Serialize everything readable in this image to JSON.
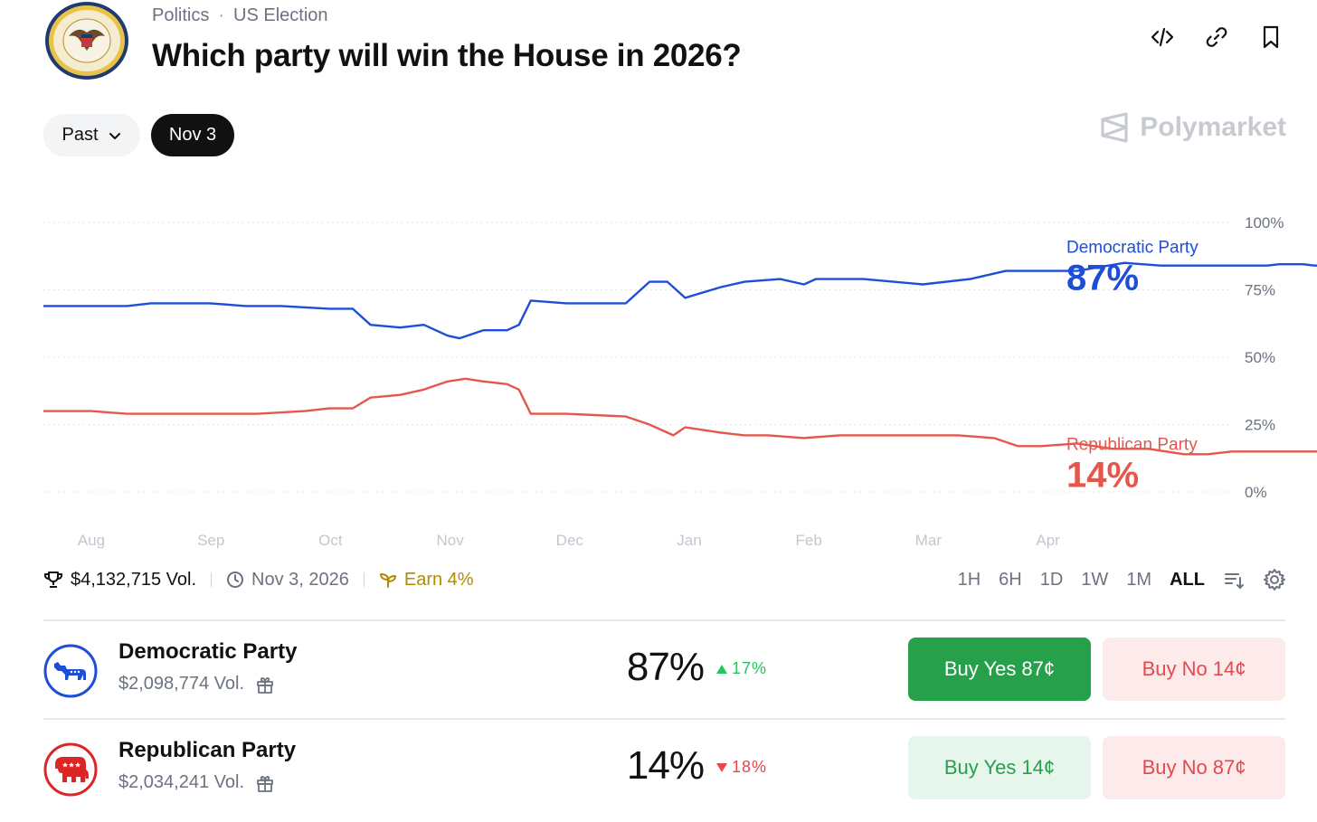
{
  "header": {
    "category": "Politics",
    "subcategory": "US Election",
    "title": "Which party will win the House in 2026?",
    "seal_icon": "us-house-seal-icon",
    "icons": [
      "embed-code-icon",
      "link-icon",
      "bookmark-icon"
    ]
  },
  "filters": {
    "past_label": "Past",
    "date_label": "Nov 3"
  },
  "brand": {
    "name": "Polymarket",
    "color": "#c7cbd1"
  },
  "chart_data": {
    "type": "line",
    "x_labels": [
      "Aug",
      "Sep",
      "Oct",
      "Nov",
      "Dec",
      "Jan",
      "Feb",
      "Mar",
      "Apr"
    ],
    "y_ticks": [
      "0%",
      "25%",
      "50%",
      "75%",
      "100%"
    ],
    "ylim": [
      0,
      100
    ],
    "grid": true,
    "series": [
      {
        "name": "Democratic Party",
        "color": "#1d4ed8",
        "current_label": "87%",
        "points": [
          [
            0,
            69
          ],
          [
            0.3,
            69
          ],
          [
            0.5,
            70
          ],
          [
            1,
            70
          ],
          [
            1.3,
            69
          ],
          [
            1.6,
            69
          ],
          [
            2,
            68
          ],
          [
            2.2,
            68
          ],
          [
            2.35,
            62
          ],
          [
            2.6,
            61
          ],
          [
            2.8,
            62
          ],
          [
            3,
            58
          ],
          [
            3.1,
            57
          ],
          [
            3.3,
            60
          ],
          [
            3.5,
            60
          ],
          [
            3.6,
            62
          ],
          [
            3.7,
            71
          ],
          [
            4,
            70
          ],
          [
            4.5,
            70
          ],
          [
            4.7,
            78
          ],
          [
            4.85,
            78
          ],
          [
            5,
            72
          ],
          [
            5.3,
            76
          ],
          [
            5.5,
            78
          ],
          [
            5.8,
            79
          ],
          [
            6,
            77
          ],
          [
            6.1,
            79
          ],
          [
            6.5,
            79
          ],
          [
            7,
            77
          ],
          [
            7.4,
            79
          ],
          [
            7.7,
            82
          ],
          [
            8,
            82
          ],
          [
            8.3,
            82
          ],
          [
            8.7,
            85
          ],
          [
            9,
            84
          ],
          [
            9.3,
            84
          ],
          [
            9.6,
            84
          ],
          [
            9.9,
            84
          ],
          [
            10,
            84.5
          ],
          [
            10.2,
            84.5
          ],
          [
            10.3,
            84
          ],
          [
            10.5,
            84
          ],
          [
            10.8,
            84
          ],
          [
            11,
            84
          ],
          [
            11.15,
            84
          ],
          [
            11.3,
            86
          ],
          [
            11.37,
            87
          ]
        ]
      },
      {
        "name": "Republican Party",
        "color": "#e5574b",
        "current_label": "14%",
        "points": [
          [
            0,
            30
          ],
          [
            0.3,
            29
          ],
          [
            0.6,
            29
          ],
          [
            1,
            29
          ],
          [
            1.4,
            29
          ],
          [
            1.8,
            30
          ],
          [
            2,
            31
          ],
          [
            2.2,
            31
          ],
          [
            2.35,
            35
          ],
          [
            2.6,
            36
          ],
          [
            2.8,
            38
          ],
          [
            3,
            41
          ],
          [
            3.15,
            42
          ],
          [
            3.3,
            41
          ],
          [
            3.5,
            40
          ],
          [
            3.6,
            38
          ],
          [
            3.7,
            29
          ],
          [
            4,
            29
          ],
          [
            4.5,
            28
          ],
          [
            4.7,
            25
          ],
          [
            4.9,
            21
          ],
          [
            5,
            24
          ],
          [
            5.3,
            22
          ],
          [
            5.5,
            21
          ],
          [
            5.7,
            21
          ],
          [
            6,
            20
          ],
          [
            6.3,
            21
          ],
          [
            6.6,
            21
          ],
          [
            7,
            21
          ],
          [
            7.3,
            21
          ],
          [
            7.6,
            20
          ],
          [
            7.8,
            17
          ],
          [
            8,
            17
          ],
          [
            8.3,
            18
          ],
          [
            8.6,
            16
          ],
          [
            8.9,
            16
          ],
          [
            9.2,
            14
          ],
          [
            9.4,
            14
          ],
          [
            9.6,
            15
          ],
          [
            9.8,
            15
          ],
          [
            10,
            15
          ],
          [
            10.3,
            15
          ],
          [
            10.6,
            15
          ],
          [
            10.9,
            15
          ],
          [
            11,
            15
          ],
          [
            11.2,
            15
          ],
          [
            11.37,
            14
          ]
        ]
      }
    ]
  },
  "stats": {
    "volume": "$4,132,715 Vol.",
    "end_date": "Nov 3, 2026",
    "earn": "Earn 4%"
  },
  "ranges": {
    "items": [
      "1H",
      "6H",
      "1D",
      "1W",
      "1M",
      "ALL"
    ],
    "active": "ALL"
  },
  "outcomes": [
    {
      "name": "Democratic Party",
      "volume": "$2,098,774 Vol.",
      "percent": "87%",
      "change": "17%",
      "direction": "up",
      "change_color": "#22c55e",
      "logo_color": "#1d4ed8",
      "logo_icon": "donkey-icon",
      "yes_label": "Buy Yes",
      "yes_price": "87¢",
      "no_label": "Buy No",
      "no_price": "14¢",
      "yes_style": "solid"
    },
    {
      "name": "Republican Party",
      "volume": "$2,034,241 Vol.",
      "percent": "14%",
      "change": "18%",
      "direction": "down",
      "change_color": "#e5484d",
      "logo_color": "#dc2626",
      "logo_icon": "elephant-icon",
      "yes_label": "Buy Yes",
      "yes_price": "14¢",
      "no_label": "Buy No",
      "no_price": "87¢",
      "yes_style": "light"
    }
  ]
}
